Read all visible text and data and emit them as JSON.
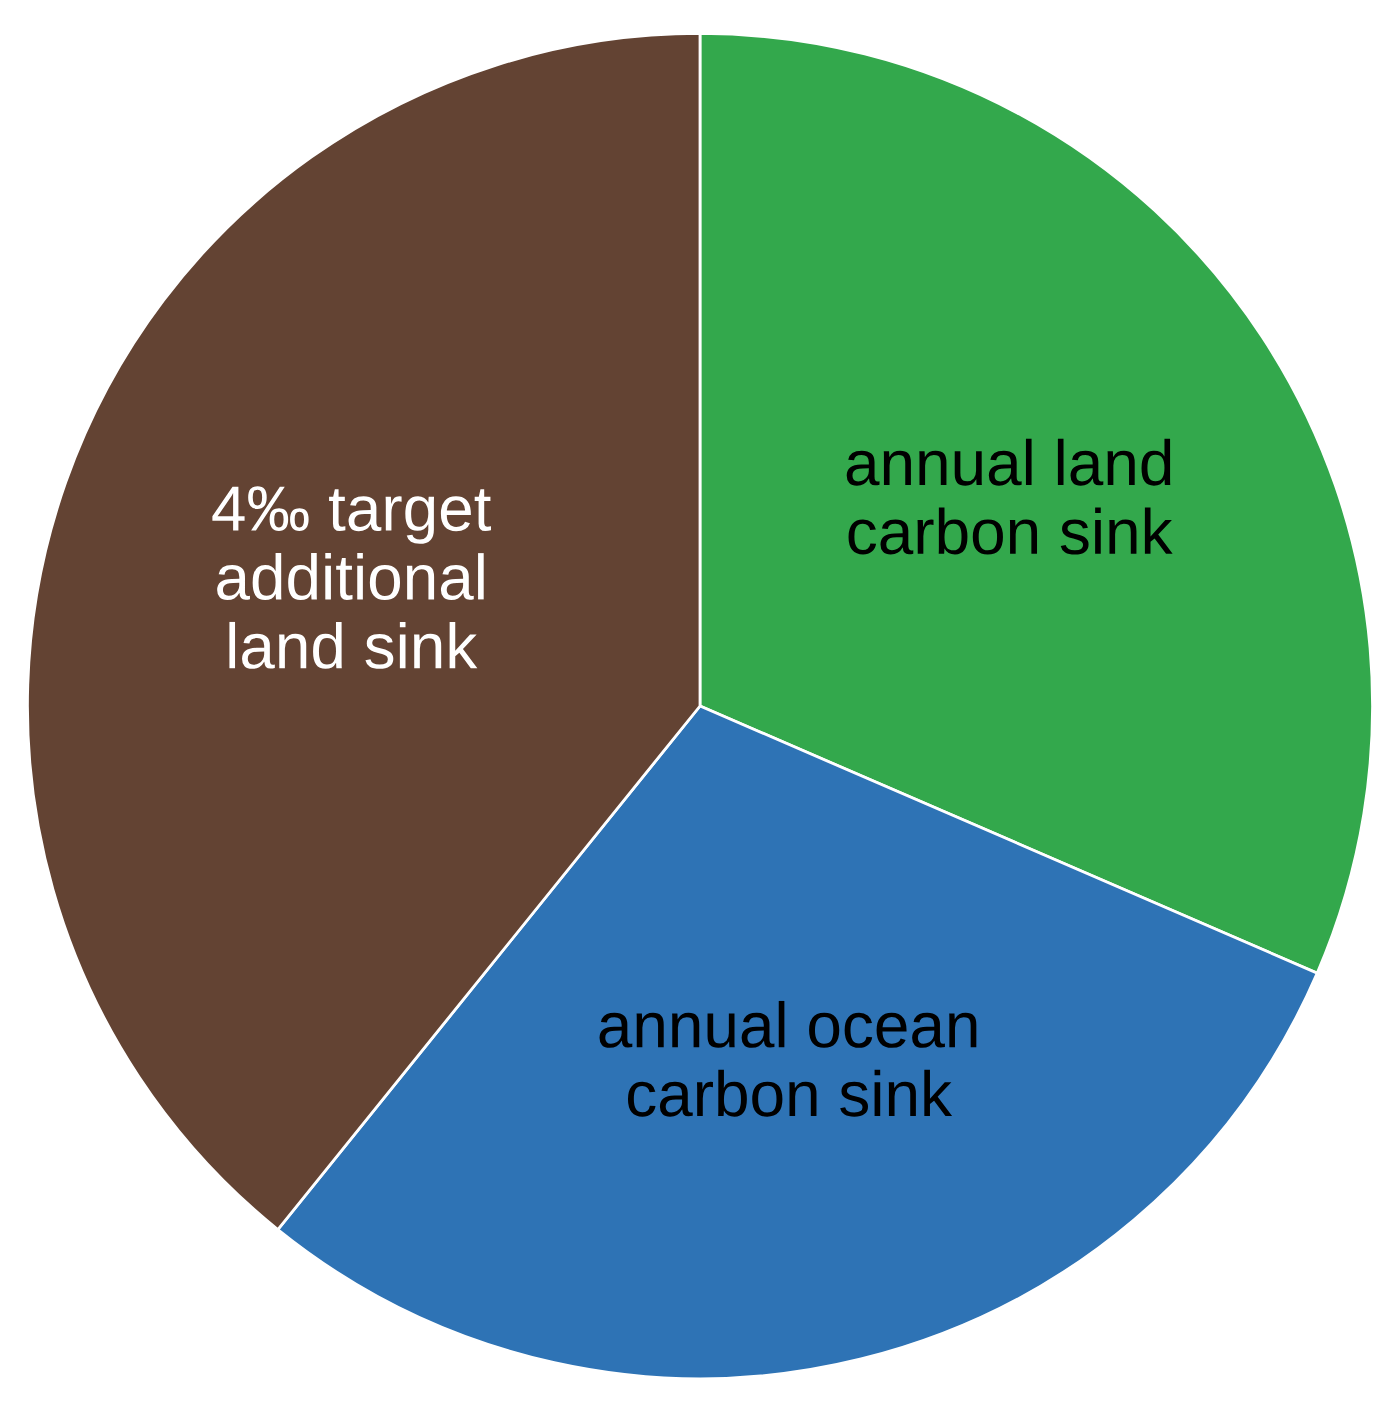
{
  "chart_data": {
    "type": "pie",
    "categories": [
      "annual land\ncarbon sink",
      "annual ocean\ncarbon sink",
      "4‰ target\nadditional\nland sink"
    ],
    "values": [
      31.5,
      29.3,
      39.2
    ],
    "colors": [
      "#33a84c",
      "#2e73b5",
      "#634333"
    ],
    "legend": false
  }
}
